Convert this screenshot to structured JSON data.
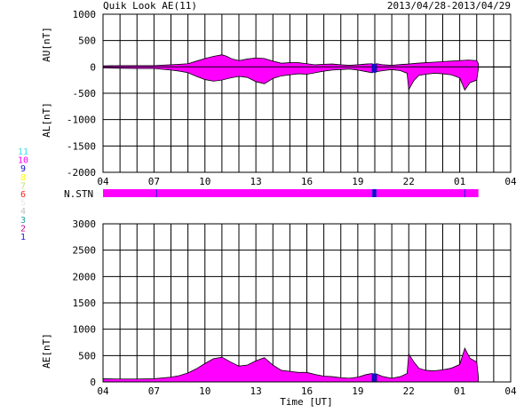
{
  "header": {
    "title": "Quik Look AE(11)",
    "date_range": "2013/04/28-2013/04/29"
  },
  "x_axis": {
    "label": "Time [UT]",
    "ticks": [
      "04",
      "07",
      "10",
      "13",
      "16",
      "19",
      "22",
      "01",
      "04"
    ]
  },
  "stations": {
    "label": "N.STN",
    "legend": [
      {
        "label": "11",
        "color": "#40e0e8"
      },
      {
        "label": "10",
        "color": "#ff00ff"
      },
      {
        "label": "9",
        "color": "#1010d0"
      },
      {
        "label": "8",
        "color": "#ffff00"
      },
      {
        "label": "7",
        "color": "#c8e070"
      },
      {
        "label": "6",
        "color": "#ff2020"
      },
      {
        "label": "5",
        "color": "#e8e8e8"
      },
      {
        "label": "4",
        "color": "#c0c0c0"
      },
      {
        "label": "3",
        "color": "#20a0a0"
      },
      {
        "label": "2",
        "color": "#c01090"
      },
      {
        "label": "1",
        "color": "#2020e0"
      }
    ],
    "segments": [
      {
        "start": 0.0,
        "end": 15.85,
        "count": 10
      },
      {
        "start": 15.85,
        "end": 16.1,
        "count": 9
      },
      {
        "start": 16.1,
        "end": 22.1,
        "count": 10
      }
    ],
    "dividers": [
      3.15,
      21.3
    ]
  },
  "chart_data": [
    {
      "type": "area",
      "name": "AU/AL",
      "ylabel_upper": "AU[nT]",
      "ylabel_lower": "AL[nT]",
      "ylim": [
        -2000,
        1000
      ],
      "yticks": [
        "1000",
        "500",
        "0",
        "-500",
        "-1000",
        "-1500",
        "-2000"
      ],
      "xlim": [
        0,
        24
      ],
      "x_start_hour": "04",
      "fill_color": "#ff00ff",
      "gap": [
        15.85,
        16.1
      ],
      "au": [
        [
          0,
          20
        ],
        [
          1,
          25
        ],
        [
          2,
          25
        ],
        [
          3,
          25
        ],
        [
          4,
          40
        ],
        [
          4.5,
          50
        ],
        [
          5,
          60
        ],
        [
          5.5,
          110
        ],
        [
          6,
          160
        ],
        [
          6.5,
          200
        ],
        [
          7,
          230
        ],
        [
          7.3,
          200
        ],
        [
          7.6,
          150
        ],
        [
          8,
          120
        ],
        [
          8.5,
          150
        ],
        [
          9,
          170
        ],
        [
          9.5,
          160
        ],
        [
          10,
          110
        ],
        [
          10.5,
          70
        ],
        [
          11,
          80
        ],
        [
          11.5,
          80
        ],
        [
          12,
          60
        ],
        [
          12.5,
          40
        ],
        [
          13,
          50
        ],
        [
          13.5,
          55
        ],
        [
          14,
          40
        ],
        [
          14.5,
          30
        ],
        [
          15,
          40
        ],
        [
          15.5,
          55
        ],
        [
          15.85,
          60
        ],
        [
          16.1,
          60
        ],
        [
          16.5,
          40
        ],
        [
          17,
          30
        ],
        [
          17.5,
          45
        ],
        [
          18,
          55
        ],
        [
          18.5,
          70
        ],
        [
          19,
          80
        ],
        [
          19.5,
          90
        ],
        [
          20,
          100
        ],
        [
          20.5,
          110
        ],
        [
          21,
          120
        ],
        [
          21.5,
          130
        ],
        [
          22,
          120
        ],
        [
          22.1,
          60
        ]
      ],
      "al": [
        [
          0,
          -20
        ],
        [
          1,
          -25
        ],
        [
          2,
          -30
        ],
        [
          3,
          -30
        ],
        [
          4,
          -60
        ],
        [
          4.5,
          -80
        ],
        [
          5,
          -110
        ],
        [
          5.5,
          -180
        ],
        [
          6,
          -240
        ],
        [
          6.5,
          -270
        ],
        [
          7,
          -250
        ],
        [
          7.5,
          -210
        ],
        [
          8,
          -180
        ],
        [
          8.5,
          -200
        ],
        [
          9,
          -280
        ],
        [
          9.5,
          -320
        ],
        [
          10,
          -220
        ],
        [
          10.5,
          -170
        ],
        [
          11,
          -150
        ],
        [
          11.5,
          -130
        ],
        [
          12,
          -140
        ],
        [
          12.5,
          -110
        ],
        [
          13,
          -80
        ],
        [
          13.5,
          -60
        ],
        [
          14,
          -50
        ],
        [
          14.5,
          -40
        ],
        [
          15,
          -60
        ],
        [
          15.5,
          -90
        ],
        [
          15.85,
          -110
        ],
        [
          16.1,
          -90
        ],
        [
          16.5,
          -70
        ],
        [
          17,
          -50
        ],
        [
          17.5,
          -70
        ],
        [
          17.9,
          -120
        ],
        [
          18,
          -430
        ],
        [
          18.3,
          -260
        ],
        [
          18.6,
          -160
        ],
        [
          19,
          -140
        ],
        [
          19.5,
          -120
        ],
        [
          20,
          -130
        ],
        [
          20.5,
          -150
        ],
        [
          21,
          -210
        ],
        [
          21.3,
          -440
        ],
        [
          21.6,
          -300
        ],
        [
          22,
          -250
        ],
        [
          22.1,
          -30
        ]
      ]
    },
    {
      "type": "area",
      "name": "AE",
      "ylabel": "AE[nT]",
      "ylim": [
        0,
        3000
      ],
      "yticks": [
        "3000",
        "2500",
        "2000",
        "1500",
        "1000",
        "500",
        "0"
      ],
      "xlim": [
        0,
        24
      ],
      "x_start_hour": "04",
      "fill_color": "#ff00ff",
      "gap": [
        15.85,
        16.1
      ],
      "values": [
        [
          0,
          60
        ],
        [
          1,
          55
        ],
        [
          2,
          55
        ],
        [
          3,
          60
        ],
        [
          4,
          90
        ],
        [
          4.5,
          120
        ],
        [
          5,
          170
        ],
        [
          5.5,
          250
        ],
        [
          6,
          350
        ],
        [
          6.5,
          440
        ],
        [
          7,
          470
        ],
        [
          7.5,
          380
        ],
        [
          8,
          300
        ],
        [
          8.5,
          320
        ],
        [
          9,
          400
        ],
        [
          9.5,
          460
        ],
        [
          10,
          320
        ],
        [
          10.5,
          220
        ],
        [
          11,
          200
        ],
        [
          11.5,
          180
        ],
        [
          12,
          180
        ],
        [
          12.5,
          140
        ],
        [
          13,
          110
        ],
        [
          13.5,
          100
        ],
        [
          14,
          80
        ],
        [
          14.5,
          70
        ],
        [
          15,
          90
        ],
        [
          15.5,
          140
        ],
        [
          15.85,
          160
        ],
        [
          16.1,
          150
        ],
        [
          16.5,
          100
        ],
        [
          17,
          70
        ],
        [
          17.5,
          100
        ],
        [
          17.9,
          160
        ],
        [
          18,
          530
        ],
        [
          18.3,
          380
        ],
        [
          18.6,
          260
        ],
        [
          19,
          220
        ],
        [
          19.5,
          210
        ],
        [
          20,
          230
        ],
        [
          20.5,
          260
        ],
        [
          21,
          330
        ],
        [
          21.3,
          640
        ],
        [
          21.6,
          450
        ],
        [
          22,
          380
        ],
        [
          22.1,
          90
        ]
      ]
    }
  ]
}
